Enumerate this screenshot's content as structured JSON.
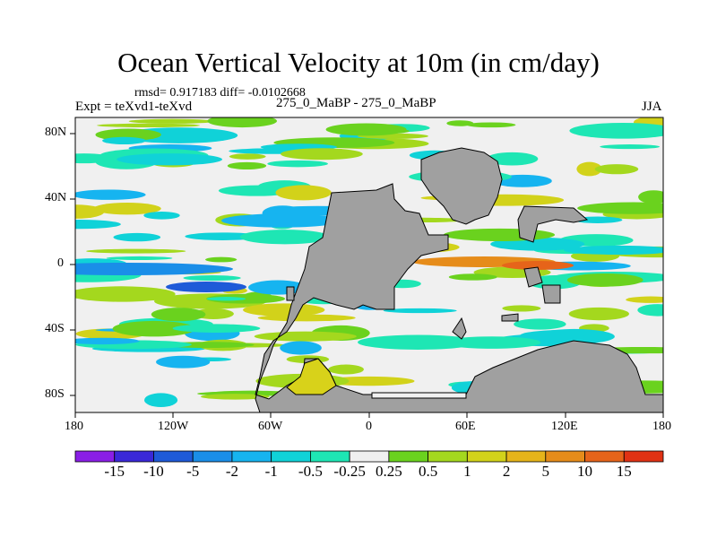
{
  "title": "Ocean Vertical Velocity at 10m (in cm/day)",
  "stats_line": "rmsd= 0.917183 diff= -0.0102668",
  "left_subtitle": "Expt = teXvd1-teXvd",
  "center_subtitle": "275_0_MaBP - 275_0_MaBP",
  "right_subtitle": "JJA",
  "y_axis_ticks": [
    "80N",
    "40N",
    "0",
    "40S",
    "80S"
  ],
  "x_axis_ticks": [
    "180",
    "120W",
    "60W",
    "0",
    "60E",
    "120E",
    "180"
  ],
  "colorbar": {
    "labels": [
      "-15",
      "-10",
      "-5",
      "-2",
      "-1",
      "-0.5",
      "-0.25",
      "0.25",
      "0.5",
      "1",
      "2",
      "5",
      "10",
      "15"
    ],
    "colors": [
      "#8a1ee6",
      "#3a28d8",
      "#1e5ad8",
      "#1a8ee8",
      "#16b4f0",
      "#10d2d8",
      "#1ee6b4",
      "#f0f0f0",
      "#6ad21e",
      "#a4d81e",
      "#d2d21a",
      "#e6b41a",
      "#e68c1a",
      "#e6641a",
      "#e03214"
    ]
  },
  "colors": {
    "land": "#a0a0a0",
    "background": "#ffffff",
    "ocean_neutral": "#f0f0f0"
  }
}
